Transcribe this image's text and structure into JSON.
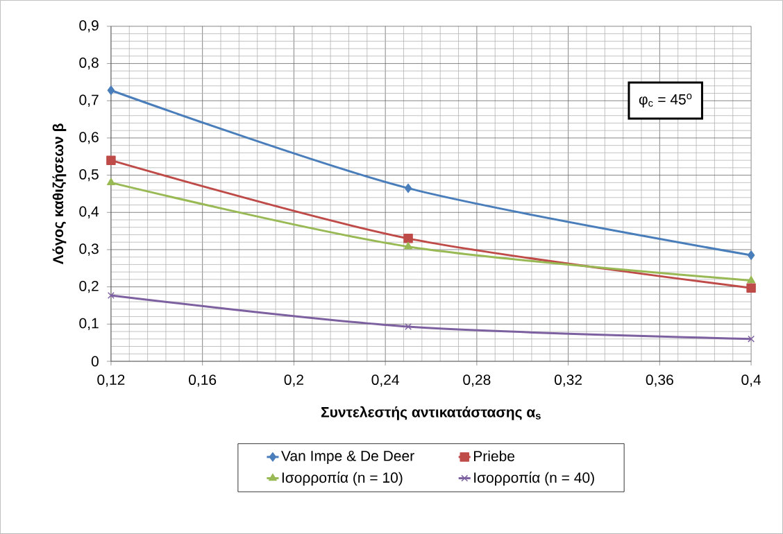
{
  "chart_data": {
    "type": "line",
    "xlabel": "Συντελεστής  αντικατάστασης α$_{s}$",
    "ylabel": "Λόγος καθιζήσεων β",
    "annotations": [
      "φ$_{c}$  = 45$^{o}$"
    ],
    "x": [
      0.12,
      0.25,
      0.4
    ],
    "series": [
      {
        "name": "Van Impe & De Deer",
        "color": "#4a7ebb",
        "marker": "diamond",
        "values": [
          0.728,
          0.465,
          0.285
        ]
      },
      {
        "name": "Priebe",
        "color": "#be4b48",
        "marker": "square",
        "values": [
          0.54,
          0.33,
          0.197
        ]
      },
      {
        "name": "Ισορροπία (n = 10)",
        "color": "#98b954",
        "marker": "triangle",
        "values": [
          0.48,
          0.308,
          0.217
        ]
      },
      {
        "name": "Ισορροπία (n = 40)",
        "color": "#7d60a0",
        "marker": "cross",
        "values": [
          0.177,
          0.093,
          0.06
        ]
      }
    ],
    "xlim": [
      0.12,
      0.4
    ],
    "ylim": [
      0,
      0.9
    ],
    "xticks": [
      {
        "value": 0.12,
        "label": "0,12"
      },
      {
        "value": 0.16,
        "label": "0,16"
      },
      {
        "value": 0.2,
        "label": "0,2"
      },
      {
        "value": 0.24,
        "label": "0,24"
      },
      {
        "value": 0.28,
        "label": "0,28"
      },
      {
        "value": 0.32,
        "label": "0,32"
      },
      {
        "value": 0.36,
        "label": "0,36"
      },
      {
        "value": 0.4,
        "label": "0,4"
      }
    ],
    "yticks": [
      0,
      {
        "value": 0.1,
        "label": "0,1"
      },
      {
        "value": 0.2,
        "label": "0,2"
      },
      {
        "value": 0.3,
        "label": "0,3"
      },
      {
        "value": 0.4,
        "label": "0,4"
      },
      {
        "value": 0.5,
        "label": "0,5"
      },
      {
        "value": 0.6,
        "label": "0,6"
      },
      {
        "value": 0.7,
        "label": "0,7"
      },
      {
        "value": 0.8,
        "label": "0,8"
      },
      {
        "value": 0.9,
        "label": "0,9"
      }
    ],
    "grid": true,
    "legend": "bottom",
    "line_style": "solid"
  }
}
